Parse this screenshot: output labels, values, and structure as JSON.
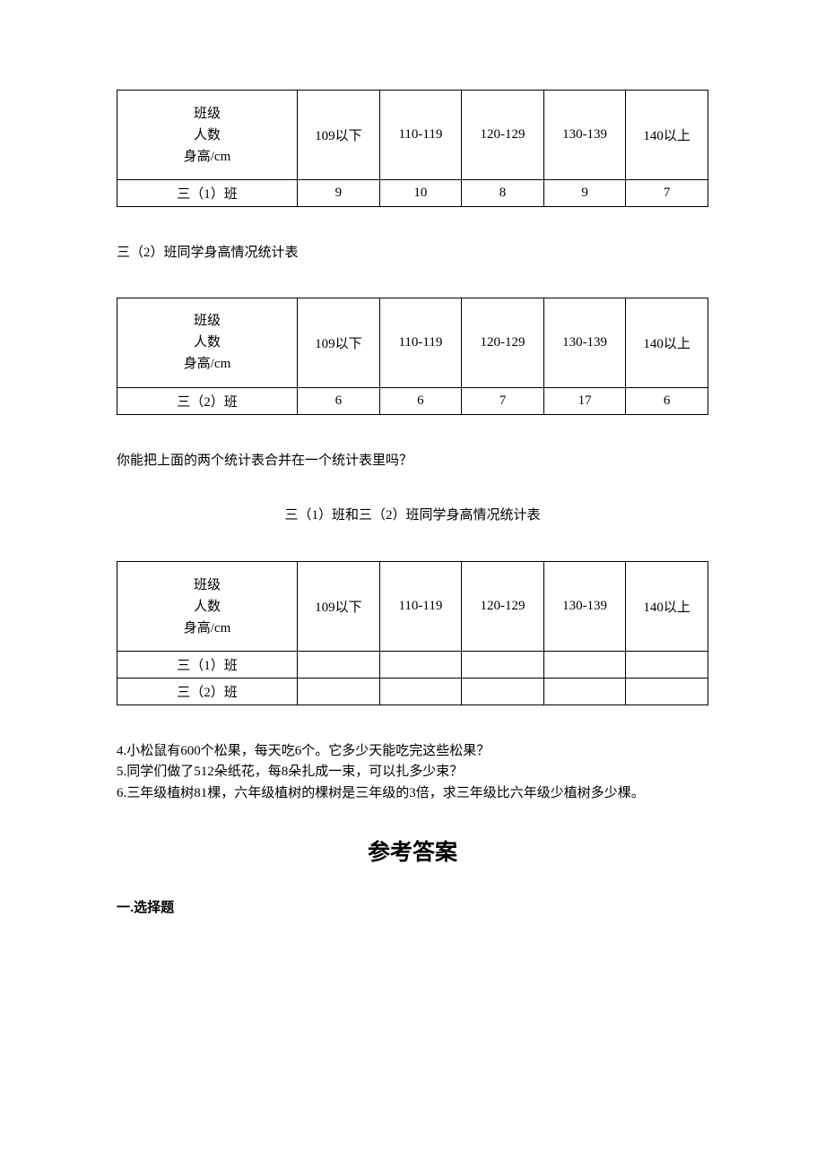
{
  "table1": {
    "headerLines": [
      "班级",
      "人数",
      "身高/cm"
    ],
    "columns": [
      "109以下",
      "110-119",
      "120-129",
      "130-139",
      "140以上"
    ],
    "rowLabel": "三（1）班",
    "values": [
      "9",
      "10",
      "8",
      "9",
      "7"
    ]
  },
  "table2Caption": "三（2）班同学身高情况统计表",
  "table2": {
    "headerLines": [
      "班级",
      "人数",
      "身高/cm"
    ],
    "columns": [
      "109以下",
      "110-119",
      "120-129",
      "130-139",
      "140以上"
    ],
    "rowLabel": "三（2）班",
    "values": [
      "6",
      "6",
      "7",
      "17",
      "6"
    ]
  },
  "questionMerge": "你能把上面的两个统计表合并在一个统计表里吗？",
  "mergedTableTitle": "三（1）班和三（2）班同学身高情况统计表",
  "table3": {
    "headerLines": [
      "班级",
      "人数",
      "身高/cm"
    ],
    "columns": [
      "109以下",
      "110-119",
      "120-129",
      "130-139",
      "140以上"
    ],
    "rowLabel1": "三（1）班",
    "rowLabel2": "三（2）班"
  },
  "questions": {
    "q4": "4.小松鼠有600个松果，每天吃6个。它多少天能吃完这些松果？",
    "q5": "5.同学们做了512朵纸花，每8朵扎成一束，可以扎多少束？",
    "q6": "6.三年级植树81棵，六年级植树的棵树是三年级的3倍，求三年级比六年级少植树多少棵。"
  },
  "answerKeyTitle": "参考答案",
  "sectionHeading": "一.选择题",
  "styling": {
    "pageWidth": 920,
    "pageHeight": 1302,
    "backgroundColor": "#ffffff",
    "textColor": "#000000",
    "borderColor": "#000000",
    "bodyFontSize": 15,
    "answerTitleFontSize": 25,
    "fontFamilyBody": "SimSun",
    "fontFamilyHeading": "SimHei",
    "tableHeaderHeight": 100,
    "tableRowHeight": 28,
    "firstColWidth": 180,
    "dataColWidth": 82
  }
}
